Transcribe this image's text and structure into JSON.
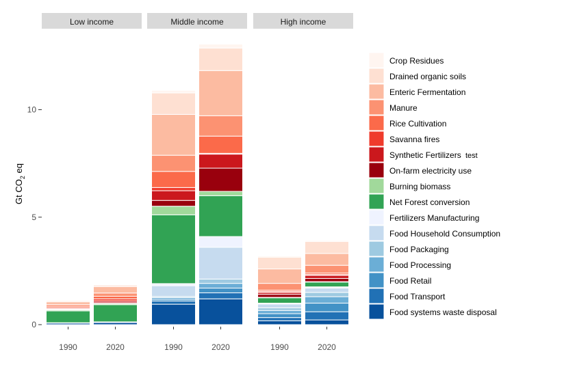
{
  "chart_data": {
    "type": "bar",
    "stacked": true,
    "ylabel": "Gt CO",
    "ylabel_subscript": "2",
    "ylabel_suffix": " eq",
    "ylim": [
      0,
      13
    ],
    "yticks": [
      0,
      5,
      10
    ],
    "ytick_labels": [
      "0",
      "5",
      "10"
    ],
    "facets": [
      "Low income",
      "Middle income",
      "High income"
    ],
    "categories": [
      "1990",
      "2020"
    ],
    "legend_position": "right",
    "annotation": "test",
    "series": [
      {
        "name": "Food systems waste disposal",
        "color": "#08519c",
        "values": [
          [
            0.07,
            0.1
          ],
          [
            0.95,
            1.2
          ],
          [
            0.18,
            0.22
          ]
        ]
      },
      {
        "name": "Food Transport",
        "color": "#2171b5",
        "values": [
          [
            0.02,
            0.03
          ],
          [
            0.15,
            0.28
          ],
          [
            0.15,
            0.38
          ]
        ]
      },
      {
        "name": "Food Retail",
        "color": "#4292c6",
        "values": [
          [
            0.0,
            0.0
          ],
          [
            0.08,
            0.22
          ],
          [
            0.18,
            0.4
          ]
        ]
      },
      {
        "name": "Food Processing",
        "color": "#6baed6",
        "values": [
          [
            0.0,
            0.0
          ],
          [
            0.08,
            0.22
          ],
          [
            0.15,
            0.3
          ]
        ]
      },
      {
        "name": "Food Packaging",
        "color": "#9ecae1",
        "values": [
          [
            0.0,
            0.0
          ],
          [
            0.05,
            0.2
          ],
          [
            0.12,
            0.2
          ]
        ]
      },
      {
        "name": "Food Household Consumption",
        "color": "#c6dbef",
        "values": [
          [
            0.0,
            0.0
          ],
          [
            0.5,
            1.48
          ],
          [
            0.18,
            0.2
          ]
        ]
      },
      {
        "name": "Fertilizers Manufacturing",
        "color": "#eff3ff",
        "values": [
          [
            0.0,
            0.0
          ],
          [
            0.1,
            0.5
          ],
          [
            0.04,
            0.06
          ]
        ]
      },
      {
        "name": "Net Forest conversion",
        "color": "#31a354",
        "values": [
          [
            0.55,
            0.8
          ],
          [
            3.2,
            1.9
          ],
          [
            0.25,
            0.22
          ]
        ]
      },
      {
        "name": "Burning biomass",
        "color": "#a1d99b",
        "values": [
          [
            0.05,
            0.05
          ],
          [
            0.4,
            0.2
          ],
          [
            0.02,
            0.02
          ]
        ]
      },
      {
        "name": "On-farm electricity use",
        "color": "#99000d",
        "values": [
          [
            0.02,
            0.04
          ],
          [
            0.27,
            1.08
          ],
          [
            0.14,
            0.15
          ]
        ]
      },
      {
        "name": "Synthetic Fertilizers",
        "color": "#cb181d",
        "values": [
          [
            0.03,
            0.08
          ],
          [
            0.45,
            0.65
          ],
          [
            0.08,
            0.14
          ]
        ]
      },
      {
        "name": "Savanna fires",
        "color": "#ef3b2c",
        "values": [
          [
            0.05,
            0.1
          ],
          [
            0.15,
            0.04
          ],
          [
            0.05,
            0.04
          ]
        ]
      },
      {
        "name": "Rice Cultivation",
        "color": "#fb6a4a",
        "values": [
          [
            0.07,
            0.12
          ],
          [
            0.75,
            0.8
          ],
          [
            0.06,
            0.07
          ]
        ]
      },
      {
        "name": "Manure",
        "color": "#fc9272",
        "values": [
          [
            0.08,
            0.15
          ],
          [
            0.75,
            0.95
          ],
          [
            0.32,
            0.36
          ]
        ]
      },
      {
        "name": "Enteric Fermentation",
        "color": "#fcbba1",
        "values": [
          [
            0.12,
            0.3
          ],
          [
            1.9,
            2.1
          ],
          [
            0.67,
            0.55
          ]
        ]
      },
      {
        "name": "Drained organic soils",
        "color": "#fee0d2",
        "values": [
          [
            0.05,
            0.07
          ],
          [
            1.0,
            1.05
          ],
          [
            0.55,
            0.56
          ]
        ]
      },
      {
        "name": "Crop Residues",
        "color": "#fff5f0",
        "values": [
          [
            0.02,
            0.03
          ],
          [
            0.12,
            0.18
          ],
          [
            0.06,
            0.05
          ]
        ]
      }
    ]
  }
}
